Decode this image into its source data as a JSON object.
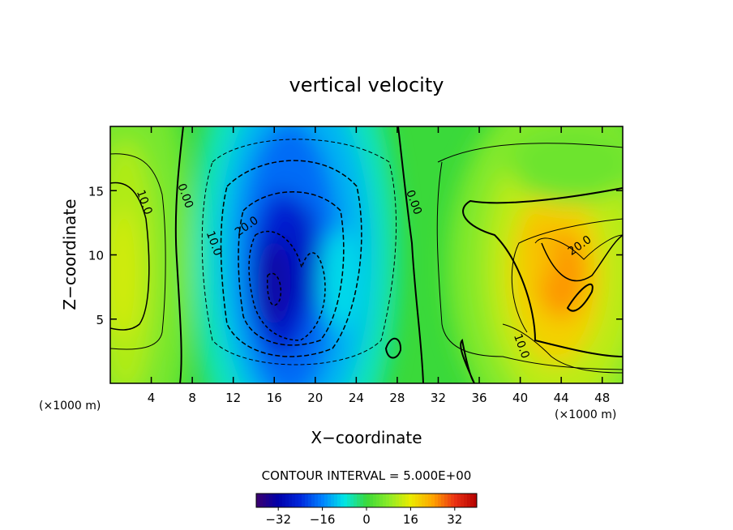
{
  "chart_data": {
    "type": "heatmap",
    "title": "vertical velocity",
    "xlabel": "X−coordinate",
    "ylabel": "Z−coordinate",
    "x_unit_left": "(×1000 m)",
    "x_unit_right": "(×1000 m)",
    "xlim": [
      0,
      50
    ],
    "ylim": [
      0,
      20
    ],
    "xticks": [
      4,
      8,
      12,
      16,
      20,
      24,
      28,
      32,
      36,
      40,
      44,
      48
    ],
    "yticks": [
      5,
      10,
      15
    ],
    "contour_interval_text": "CONTOUR INTERVAL = 5.000E+00",
    "colorbar": {
      "range": [
        -40,
        40
      ],
      "ticks": [
        -32,
        -16,
        0,
        16,
        32
      ],
      "tick_labels": [
        "−32",
        "−16",
        "0",
        "16",
        "32"
      ]
    },
    "contour_labels": [
      {
        "text": "10.0",
        "x": 3.0,
        "y": 14.0
      },
      {
        "text": "0.00",
        "x": 7.0,
        "y": 14.5
      },
      {
        "text": "10.0",
        "x": 9.8,
        "y": 10.8
      },
      {
        "text": "20.0",
        "x": 13.5,
        "y": 12.0
      },
      {
        "text": "0.00",
        "x": 29.3,
        "y": 14.0
      },
      {
        "text": "20.0",
        "x": 46.0,
        "y": 10.5
      },
      {
        "text": "10.0",
        "x": 39.8,
        "y": 2.8
      }
    ],
    "field_features": [
      {
        "type": "updraft",
        "x": 1.5,
        "y": 9.5,
        "peak": 14
      },
      {
        "type": "downdraft",
        "x": 16.0,
        "y": 8.5,
        "peak": -33
      },
      {
        "type": "downdraft",
        "x": 19.0,
        "y": 9.5,
        "peak": -28
      },
      {
        "type": "updraft",
        "x": 44.0,
        "y": 8.5,
        "peak": 27
      }
    ]
  }
}
